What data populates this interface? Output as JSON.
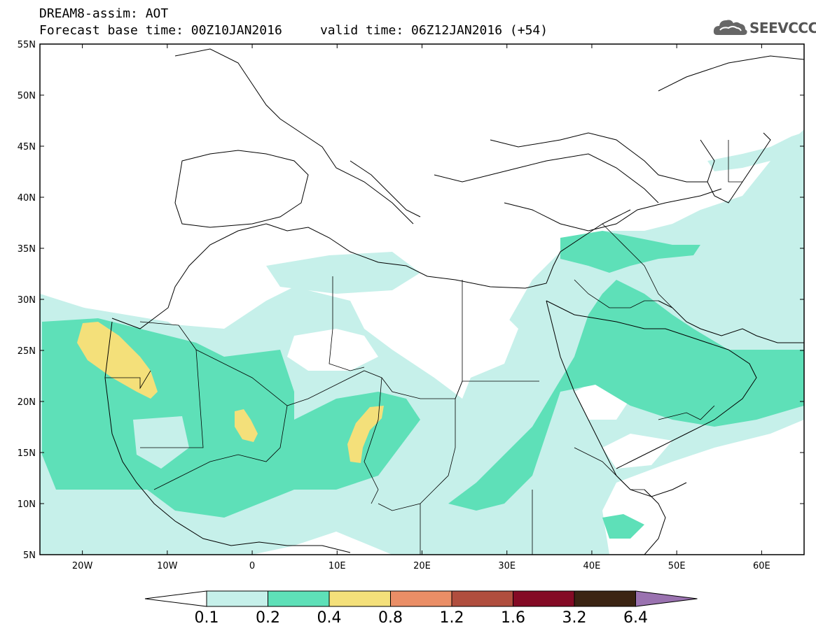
{
  "header": {
    "line1": "DREAM8-assim: AOT",
    "line2": "Forecast base time: 00Z10JAN2016     valid time: 06Z12JAN2016 (+54)"
  },
  "logo": {
    "text": "SEEVCCC",
    "icon": "cloud-icon"
  },
  "map": {
    "lat_labels": [
      "55N",
      "50N",
      "45N",
      "40N",
      "35N",
      "30N",
      "25N",
      "20N",
      "15N",
      "10N",
      "5N"
    ],
    "lon_labels": [
      "20W",
      "10W",
      "0",
      "10E",
      "20E",
      "30E",
      "40E",
      "50E",
      "60E"
    ],
    "lon_range": [
      -25,
      65
    ],
    "lat_range": [
      5,
      55
    ],
    "grid": false
  },
  "colorbar": {
    "levels": [
      "0.1",
      "0.2",
      "0.4",
      "0.8",
      "1.2",
      "1.6",
      "3.2",
      "6.4"
    ],
    "colors": [
      "#ffffff",
      "#c6f0ea",
      "#5ee0b8",
      "#f4e07a",
      "#ea8e66",
      "#b04e3e",
      "#840b25",
      "#3b2413",
      "#9a72b0"
    ]
  }
}
